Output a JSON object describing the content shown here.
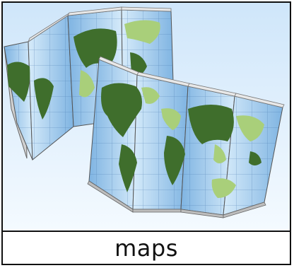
{
  "card": {
    "caption": "maps",
    "illustration": "folded-world-map-icon"
  },
  "colors": {
    "sky_top": "#d8ecfb",
    "sky_bottom": "#eef7ff",
    "ocean": "#8fc0e8",
    "ocean_light": "#cfe6f8",
    "land": "#3f6e2c",
    "land_light": "#a9cf7a",
    "paper_back": "#d4d4d4",
    "grid": "#3e6fa8"
  }
}
